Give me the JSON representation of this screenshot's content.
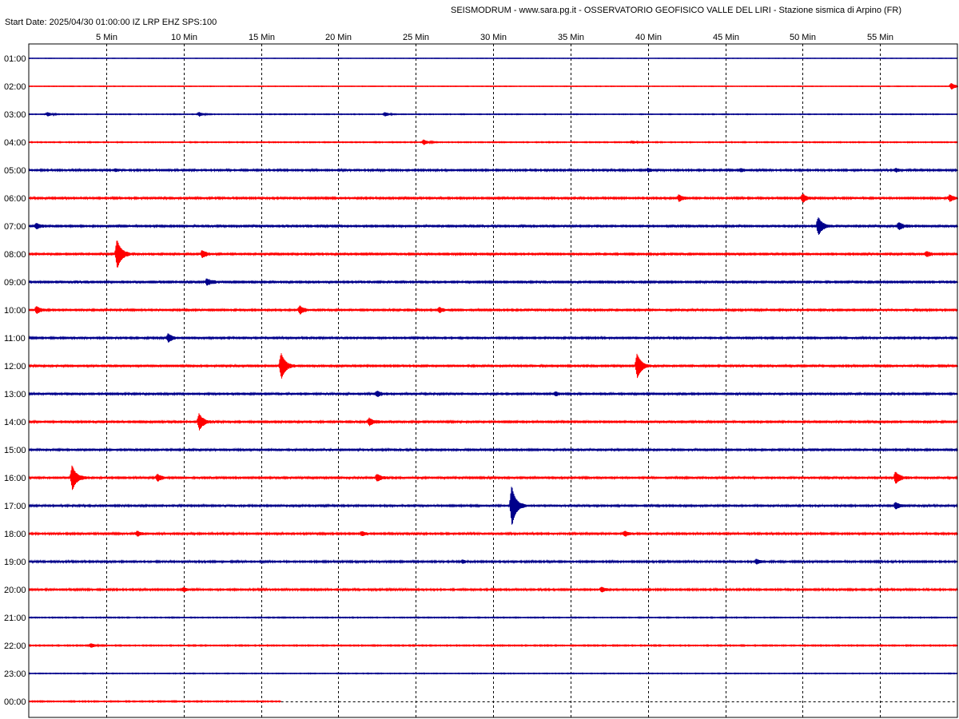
{
  "header": {
    "title": "SEISMODRUM - www.sara.pg.it - OSSERVATORIO GEOFISICO VALLE DEL LIRI - Stazione sismica di Arpino (FR)",
    "start_info": "Start Date: 2025/04/30 01:00:00 IZ LRP EHZ SPS:100"
  },
  "chart_data": {
    "type": "line",
    "title": "SEISMODRUM - www.sara.pg.it - OSSERVATORIO GEOFISICO VALLE DEL LIRI - Stazione sismica di Arpino (FR)",
    "subtitle": "Start Date: 2025/04/30 01:00:00 IZ LRP EHZ SPS:100",
    "xlabel": "",
    "ylabel": "",
    "xlim": [
      0,
      60
    ],
    "x_ticks": [
      5,
      10,
      15,
      20,
      25,
      30,
      35,
      40,
      45,
      50,
      55
    ],
    "x_tick_labels": [
      "5 Min",
      "10 Min",
      "15 Min",
      "20 Min",
      "25 Min",
      "30 Min",
      "35 Min",
      "40 Min",
      "45 Min",
      "50 Min",
      "55 Min"
    ],
    "grid": true,
    "colors": {
      "odd_rows": "#00008b",
      "even_rows": "#ff0000",
      "grid": "#000000"
    },
    "rows": [
      {
        "label": "01:00",
        "color": "#00008b",
        "noise": 0.2,
        "end_min": 60,
        "events": []
      },
      {
        "label": "02:00",
        "color": "#ff0000",
        "noise": 0.3,
        "end_min": 60,
        "events": [
          {
            "t": 59.6,
            "amp": 4
          }
        ]
      },
      {
        "label": "03:00",
        "color": "#00008b",
        "noise": 0.4,
        "end_min": 60,
        "events": [
          {
            "t": 1.2,
            "amp": 2.5
          },
          {
            "t": 11.0,
            "amp": 2.5
          },
          {
            "t": 23.0,
            "amp": 2.5
          }
        ]
      },
      {
        "label": "04:00",
        "color": "#ff0000",
        "noise": 0.5,
        "end_min": 60,
        "events": [
          {
            "t": 25.5,
            "amp": 3
          },
          {
            "t": 39.0,
            "amp": 1.5
          }
        ]
      },
      {
        "label": "05:00",
        "color": "#00008b",
        "noise": 0.9,
        "end_min": 60,
        "events": [
          {
            "t": 5.6,
            "amp": 1.5
          },
          {
            "t": 40.0,
            "amp": 2
          },
          {
            "t": 46.0,
            "amp": 2
          },
          {
            "t": 56.0,
            "amp": 2
          }
        ]
      },
      {
        "label": "06:00",
        "color": "#ff0000",
        "noise": 1.0,
        "end_min": 60,
        "events": [
          {
            "t": 42.0,
            "amp": 4
          },
          {
            "t": 50.0,
            "amp": 5
          },
          {
            "t": 59.5,
            "amp": 4
          }
        ]
      },
      {
        "label": "07:00",
        "color": "#00008b",
        "noise": 1.3,
        "end_min": 60,
        "events": [
          {
            "t": 0.5,
            "amp": 3
          },
          {
            "t": 51.0,
            "amp": 11
          },
          {
            "t": 56.2,
            "amp": 4
          }
        ]
      },
      {
        "label": "08:00",
        "color": "#ff0000",
        "noise": 1.3,
        "end_min": 60,
        "events": [
          {
            "t": 5.7,
            "amp": 18
          },
          {
            "t": 11.2,
            "amp": 4
          },
          {
            "t": 58.0,
            "amp": 3
          }
        ]
      },
      {
        "label": "09:00",
        "color": "#00008b",
        "noise": 1.4,
        "end_min": 60,
        "events": [
          {
            "t": 11.5,
            "amp": 4
          }
        ]
      },
      {
        "label": "10:00",
        "color": "#ff0000",
        "noise": 1.1,
        "end_min": 60,
        "events": [
          {
            "t": 0.5,
            "amp": 4
          },
          {
            "t": 17.5,
            "amp": 5
          },
          {
            "t": 26.5,
            "amp": 3
          }
        ]
      },
      {
        "label": "11:00",
        "color": "#00008b",
        "noise": 1.1,
        "end_min": 60,
        "events": [
          {
            "t": 9.0,
            "amp": 5
          }
        ]
      },
      {
        "label": "12:00",
        "color": "#ff0000",
        "noise": 1.2,
        "end_min": 60,
        "events": [
          {
            "t": 16.3,
            "amp": 16
          },
          {
            "t": 39.3,
            "amp": 15
          }
        ]
      },
      {
        "label": "13:00",
        "color": "#00008b",
        "noise": 1.2,
        "end_min": 60,
        "events": [
          {
            "t": 22.5,
            "amp": 3
          },
          {
            "t": 34.0,
            "amp": 2
          }
        ]
      },
      {
        "label": "14:00",
        "color": "#ff0000",
        "noise": 1.3,
        "end_min": 60,
        "events": [
          {
            "t": 11.0,
            "amp": 10
          },
          {
            "t": 22.0,
            "amp": 4
          }
        ]
      },
      {
        "label": "15:00",
        "color": "#00008b",
        "noise": 1.2,
        "end_min": 60,
        "events": []
      },
      {
        "label": "16:00",
        "color": "#ff0000",
        "noise": 1.2,
        "end_min": 60,
        "events": [
          {
            "t": 2.8,
            "amp": 15
          },
          {
            "t": 8.3,
            "amp": 4
          },
          {
            "t": 22.5,
            "amp": 4
          },
          {
            "t": 56.0,
            "amp": 7
          }
        ]
      },
      {
        "label": "17:00",
        "color": "#00008b",
        "noise": 1.1,
        "end_min": 60,
        "events": [
          {
            "t": 31.2,
            "amp": 25
          },
          {
            "t": 56.0,
            "amp": 4
          }
        ]
      },
      {
        "label": "18:00",
        "color": "#ff0000",
        "noise": 1.0,
        "end_min": 60,
        "events": [
          {
            "t": 7.0,
            "amp": 3
          },
          {
            "t": 21.5,
            "amp": 2.5
          },
          {
            "t": 38.5,
            "amp": 3
          }
        ]
      },
      {
        "label": "19:00",
        "color": "#00008b",
        "noise": 0.9,
        "end_min": 60,
        "events": [
          {
            "t": 28.0,
            "amp": 2
          },
          {
            "t": 47.0,
            "amp": 3
          }
        ]
      },
      {
        "label": "20:00",
        "color": "#ff0000",
        "noise": 0.9,
        "end_min": 60,
        "events": [
          {
            "t": 10.0,
            "amp": 2.5
          },
          {
            "t": 37.0,
            "amp": 3
          }
        ]
      },
      {
        "label": "21:00",
        "color": "#00008b",
        "noise": 0.5,
        "end_min": 60,
        "events": []
      },
      {
        "label": "22:00",
        "color": "#ff0000",
        "noise": 0.6,
        "end_min": 60,
        "events": [
          {
            "t": 4.0,
            "amp": 2.5
          }
        ]
      },
      {
        "label": "23:00",
        "color": "#00008b",
        "noise": 0.4,
        "end_min": 60,
        "events": []
      },
      {
        "label": "00:00",
        "color": "#ff0000",
        "noise": 0.6,
        "end_min": 16.3,
        "events": []
      }
    ]
  }
}
